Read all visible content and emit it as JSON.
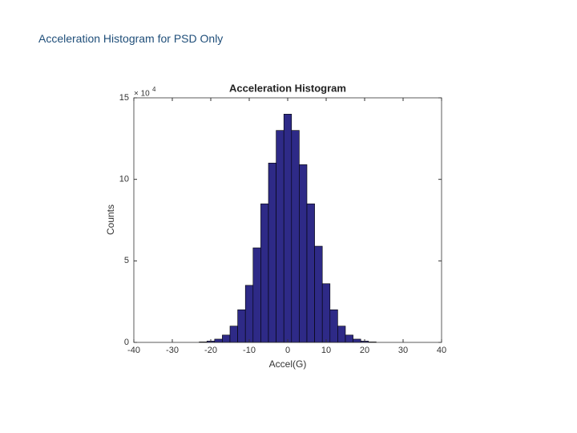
{
  "slide_title": "Acceleration Histogram for PSD Only",
  "chart_data": {
    "type": "histogram",
    "title": "Acceleration Histogram",
    "x_label": "Accel(G)",
    "y_label": "Counts",
    "y_scale_label_base": "× 10",
    "y_scale_label_exponent": "4",
    "bins": [
      -23,
      -21,
      -19,
      -17,
      -15,
      -13,
      -11,
      -9,
      -7,
      -5,
      -3,
      -1,
      1,
      3,
      5,
      7,
      9,
      11,
      13,
      15,
      17,
      19,
      21,
      23
    ],
    "values": [
      0.03,
      0.08,
      0.2,
      0.45,
      1.0,
      2.0,
      3.5,
      5.8,
      8.5,
      11.0,
      13.0,
      14.0,
      13.0,
      10.9,
      8.5,
      5.9,
      3.6,
      2.0,
      1.0,
      0.45,
      0.2,
      0.08,
      0.03
    ],
    "color": "#2e2a87",
    "xlim": [
      -40,
      40
    ],
    "xticks": [
      -40,
      -30,
      -20,
      -10,
      0,
      10,
      20,
      30,
      40
    ],
    "ylim": [
      0,
      15
    ],
    "yticks": [
      0,
      5,
      10,
      15
    ],
    "grid": false
  }
}
